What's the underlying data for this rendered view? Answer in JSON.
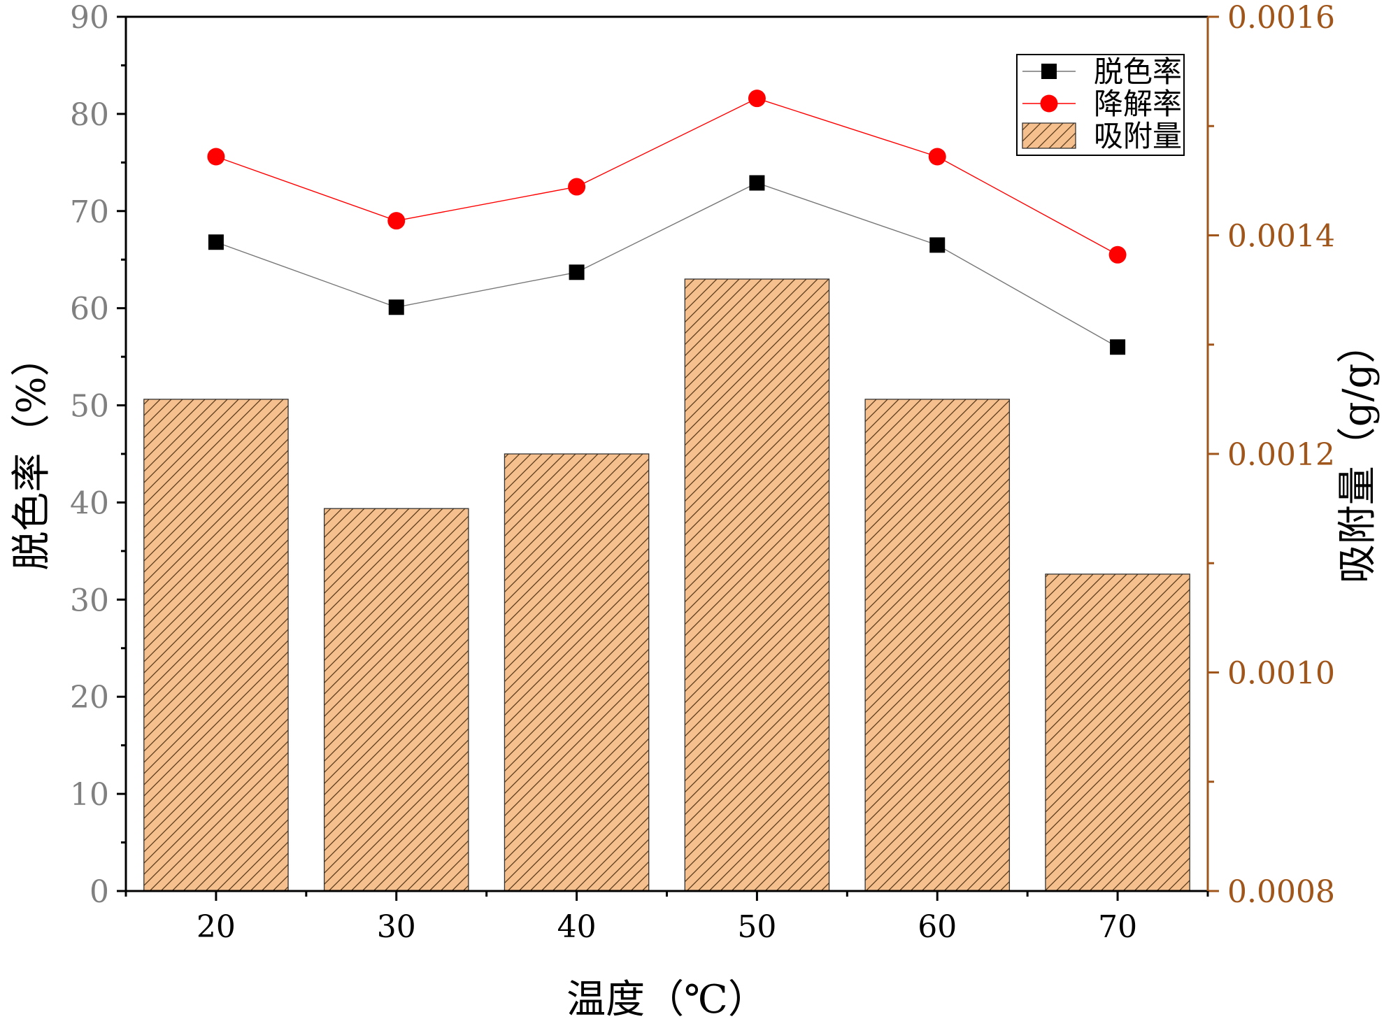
{
  "chart_data": {
    "type": "bar",
    "categories": [
      "20",
      "30",
      "40",
      "50",
      "60",
      "70"
    ],
    "xlabel": "温度（℃）",
    "ylabel_left": "脱色率（%）",
    "ylabel_right": "吸附量（g/g）",
    "ylim_left": [
      0,
      90
    ],
    "yticks_left": [
      "0",
      "10",
      "20",
      "30",
      "40",
      "50",
      "60",
      "70",
      "80",
      "90"
    ],
    "ylim_right": [
      0.0008,
      0.0016
    ],
    "yticks_right": [
      "0.0008",
      "0.0010",
      "0.0012",
      "0.0014",
      "0.0016"
    ],
    "grid": false,
    "legend_position": "top-right",
    "bar_series": {
      "name": "吸附量",
      "axis": "right",
      "values": [
        0.00125,
        0.00115,
        0.0012,
        0.00136,
        0.00125,
        0.00109
      ],
      "color": "#f5c08e",
      "hatch": "diagonal"
    },
    "line_series": [
      {
        "name": "脱色率",
        "axis": "left",
        "marker": "square",
        "color": "#000000",
        "line_color": "#777777",
        "values": [
          66.8,
          60.1,
          63.7,
          72.9,
          66.5,
          56.0
        ]
      },
      {
        "name": "降解率",
        "axis": "left",
        "marker": "circle",
        "color": "#ff0000",
        "line_color": "#ff0000",
        "values": [
          75.6,
          69.0,
          72.5,
          81.6,
          75.6,
          65.5
        ]
      }
    ],
    "colors": {
      "right_axis": "#a0561a",
      "left_tick_text": "#808080"
    }
  }
}
